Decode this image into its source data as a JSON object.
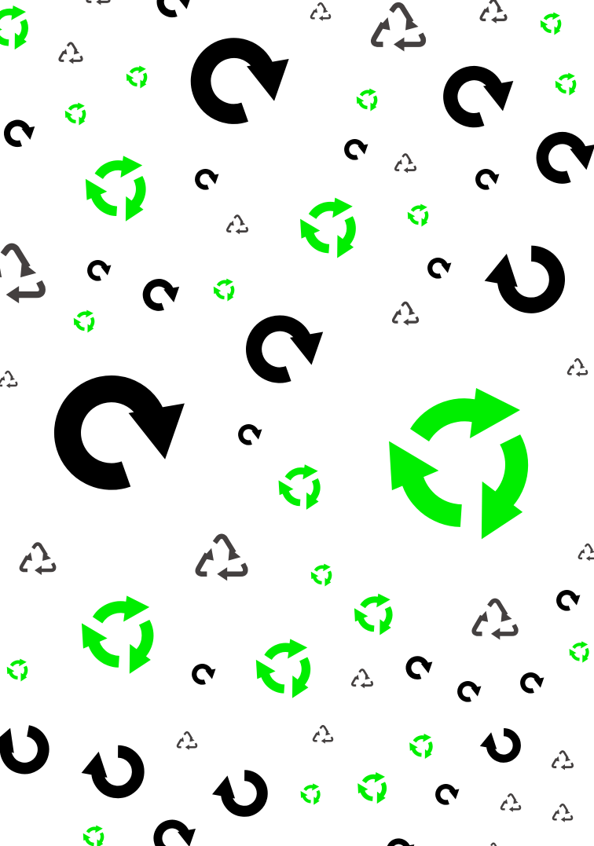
{
  "colors": {
    "background": "#ffffff",
    "refresh_icon": "#000000",
    "recycle_circle_icon": "#00ee00",
    "recycle_triangle_icon": "#444040"
  },
  "icon_types": [
    "refresh-arrow-icon",
    "recycle-circle-icon",
    "recycle-triangle-icon"
  ]
}
